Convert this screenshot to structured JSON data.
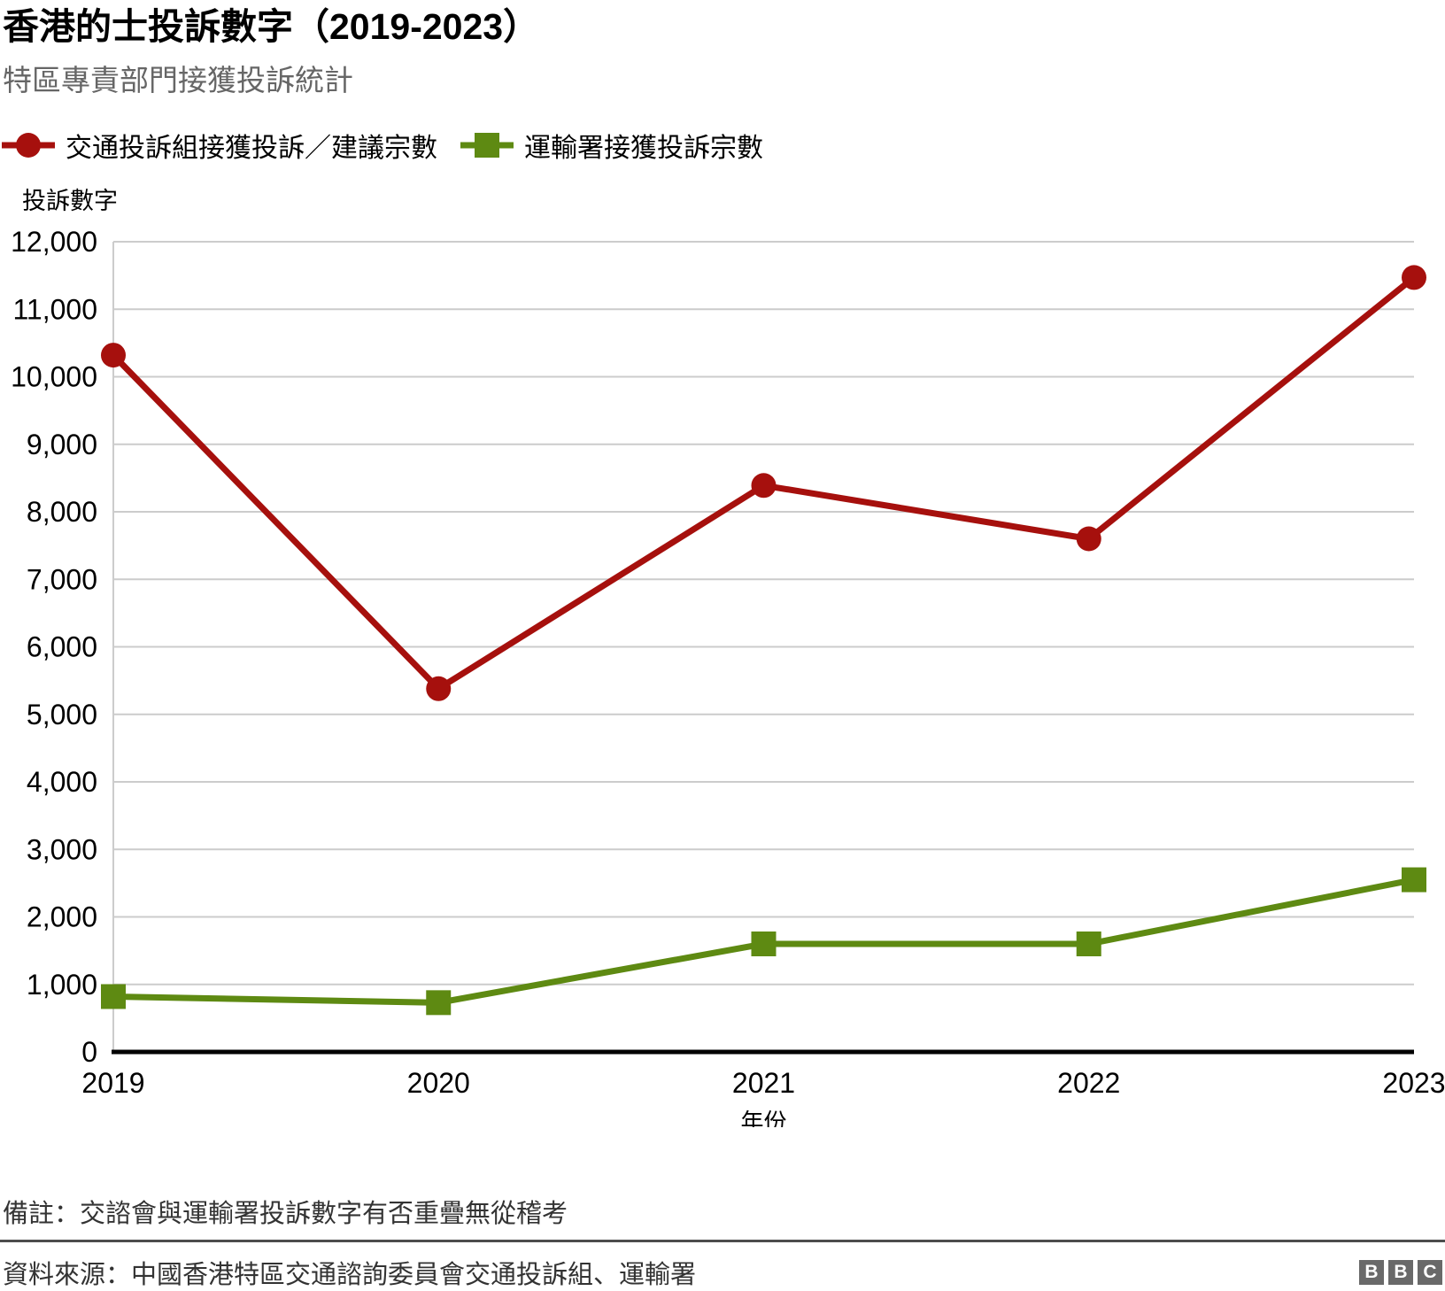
{
  "header": {
    "title": "香港的士投訴數字（2019-2023）",
    "subtitle": "特區專責部門接獲投訴統計"
  },
  "chart_data": {
    "type": "line",
    "title": "香港的士投訴數字（2019-2023）",
    "subtitle": "特區專責部門接獲投訴統計",
    "x": [
      "2019",
      "2020",
      "2021",
      "2022",
      "2023"
    ],
    "xlabel": "年份",
    "ylabel": "投訴數字",
    "ylim": [
      0,
      12000
    ],
    "ytick_step": 1000,
    "ytick_labels": [
      "0",
      "1,000",
      "2,000",
      "3,000",
      "4,000",
      "5,000",
      "6,000",
      "7,000",
      "8,000",
      "9,000",
      "10,000",
      "11,000",
      "12,000"
    ],
    "grid": "horizontal",
    "legend_position": "top-left",
    "series": [
      {
        "name": "交通投訴組接獲投訴／建議宗數",
        "marker": "circle",
        "color": "#a6100d",
        "values": [
          10320,
          5380,
          8390,
          7600,
          11470
        ]
      },
      {
        "name": "運輸署接獲投訴宗數",
        "marker": "square",
        "color": "#5e8a12",
        "values": [
          820,
          730,
          1600,
          1600,
          2550
        ]
      }
    ]
  },
  "footer": {
    "note": "備註：交諮會與運輸署投訴數字有否重疊無從稽考",
    "source": "資料來源：中國香港特區交通諮詢委員會交通投訴組、運輸署",
    "logo_letters": [
      "B",
      "B",
      "C"
    ]
  },
  "colors": {
    "subtitle": "#666666",
    "grid": "#cccccc",
    "axis": "#000000",
    "footer_text": "#333333",
    "divider": "#4d4d4d",
    "logo_bg": "#696969"
  }
}
